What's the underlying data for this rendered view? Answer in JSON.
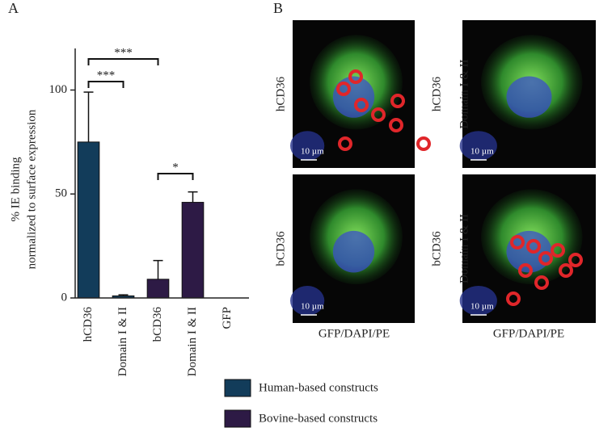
{
  "panel_labels": [
    "A",
    "B"
  ],
  "chart_data": {
    "type": "bar",
    "ylabel": [
      "% IE binding",
      "normalized to surface expression"
    ],
    "categories": [
      "hCD36",
      "Domain I & II",
      "bCD36",
      "Domain I & II",
      "GFP"
    ],
    "series": [
      {
        "name": "Human-based constructs",
        "color": "#123c5a",
        "values": [
          75,
          1,
          null,
          null,
          null
        ],
        "errors": [
          24,
          0.5,
          null,
          null,
          null
        ]
      },
      {
        "name": "Bovine-based constructs",
        "color": "#2d1a45",
        "values": [
          null,
          null,
          9,
          46,
          null
        ],
        "errors": [
          null,
          null,
          9,
          5,
          null
        ]
      }
    ],
    "ylim": [
      0,
      120
    ],
    "yticks": [
      0,
      50,
      100
    ],
    "annotations": [
      "***",
      "***",
      "*"
    ]
  },
  "images": [
    {
      "label": [
        "hCD36"
      ],
      "scale": "10 µm"
    },
    {
      "label": [
        "hCD36",
        "Domain I & II"
      ],
      "scale": "10 µm"
    },
    {
      "label": [
        "bCD36"
      ],
      "scale": "10 µm"
    },
    {
      "label": [
        "bCD36",
        "Domain I & II"
      ],
      "scale": "10 µm"
    }
  ],
  "captions": [
    "GFP/DAPI/PE",
    "GFP/DAPI/PE"
  ]
}
